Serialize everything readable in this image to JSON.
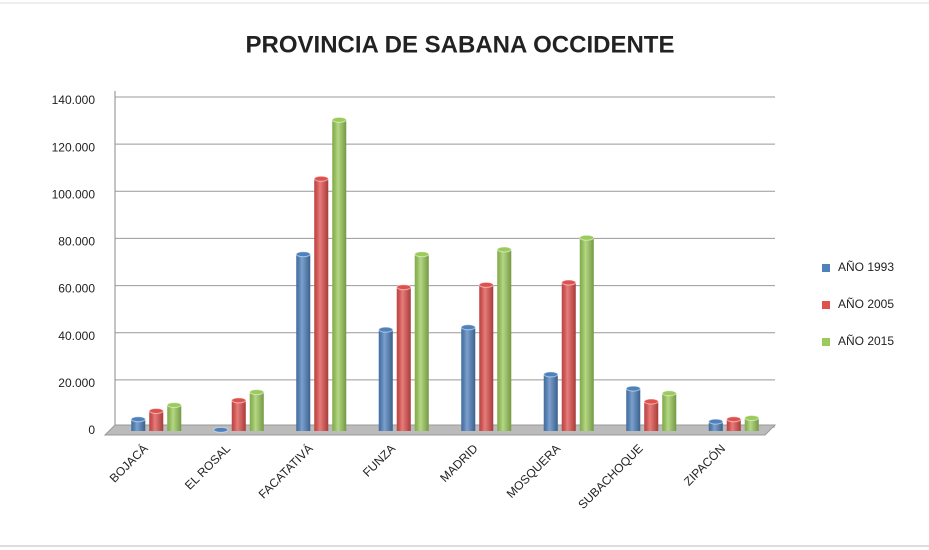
{
  "chart_data": {
    "type": "bar",
    "title": "PROVINCIA DE SABANA OCCIDENTE",
    "categories": [
      "BOJACÁ",
      "EL ROSAL",
      "FACATATIVÁ",
      "FUNZA",
      "MADRID",
      "MOSQUERA",
      "SUBACHOQUE",
      "ZIPACÓN"
    ],
    "series": [
      {
        "name": "AÑO 1993",
        "color": "#4f81bd",
        "values": [
          5000,
          500,
          75000,
          43000,
          44000,
          24000,
          18000,
          4000
        ]
      },
      {
        "name": "AÑO 2005",
        "color": "#e0504d",
        "values": [
          8500,
          13000,
          107000,
          61000,
          62000,
          63000,
          12500,
          5000
        ]
      },
      {
        "name": "AÑO 2015",
        "color": "#9bcb5a",
        "values": [
          11000,
          16500,
          132000,
          75000,
          77000,
          82000,
          16000,
          5500
        ]
      }
    ],
    "ylim": [
      0,
      140000
    ],
    "yticks": [
      0,
      {
        "value": 20000,
        "label": "20.000"
      },
      {
        "value": 40000,
        "label": "40.000"
      },
      {
        "value": 60000,
        "label": "60.000"
      },
      {
        "value": 80000,
        "label": "80.000"
      },
      {
        "value": 100000,
        "label": "100.000"
      },
      {
        "value": 120000,
        "label": "120.000"
      },
      {
        "value": 140000,
        "label": "140.000"
      }
    ],
    "grid": true,
    "legend": "right"
  }
}
